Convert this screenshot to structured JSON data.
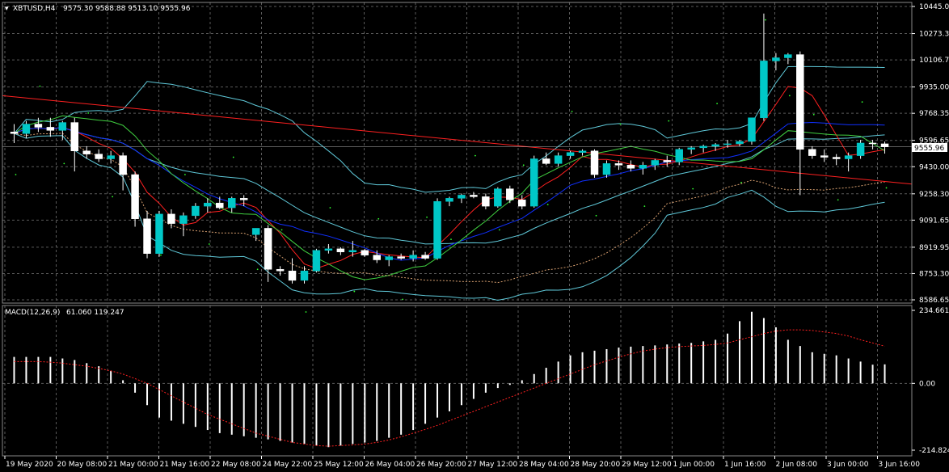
{
  "header": {
    "symbol_text": "XBTUSD,H4",
    "ohlc_text": "9575.30 9588.88 9513.10 9555.96"
  },
  "macd_header": {
    "label": "MACD(12,26,9)",
    "values_text": "61.060 119.247"
  },
  "current_price_label": "9555.96",
  "colors": {
    "background": "#000000",
    "grid": "#5a5a5a",
    "bull_body": "#00c8c8",
    "bear_body": "#ffffff",
    "bollinger": "#5fc8d8",
    "ma_fast": "#ff2020",
    "ma_slow": "#1030ff",
    "ma_long": "#ff2020",
    "rsi_like": "#40d040",
    "ichimoku_dots": "#30ff30",
    "envelope_dotted": "#d8a070",
    "macd_hist": "#ffffff",
    "macd_signal": "#ff2020"
  },
  "chart_data": [
    {
      "type": "candlestick",
      "title": "",
      "ylim": [
        8586.65,
        10445.05
      ],
      "y_ticks": [
        "10445.05",
        "10273.35",
        "10106.70",
        "9935.00",
        "9768.35",
        "9596.65",
        "9430.00",
        "9258.30",
        "9091.65",
        "8919.95",
        "8753.30",
        "8586.65"
      ],
      "x_ticks": [
        "19 May 2020",
        "20 May 08:00",
        "21 May 00:00",
        "21 May 16:00",
        "22 May 08:00",
        "24 May 22:00",
        "25 May 12:00",
        "26 May 04:00",
        "26 May 20:00",
        "27 May 12:00",
        "28 May 04:00",
        "28 May 20:00",
        "29 May 12:00",
        "1 Jun 00:00",
        "1 Jun 16:00",
        "2 Jun 08:00",
        "3 Jun 00:00",
        "3 Jun 16:00"
      ],
      "candles": [
        {
          "o": 9650,
          "h": 9700,
          "l": 9580,
          "c": 9640
        },
        {
          "o": 9640,
          "h": 9720,
          "l": 9610,
          "c": 9700
        },
        {
          "o": 9700,
          "h": 9740,
          "l": 9650,
          "c": 9680
        },
        {
          "o": 9680,
          "h": 9740,
          "l": 9620,
          "c": 9660
        },
        {
          "o": 9660,
          "h": 9720,
          "l": 9600,
          "c": 9710
        },
        {
          "o": 9710,
          "h": 9740,
          "l": 9400,
          "c": 9530
        },
        {
          "o": 9530,
          "h": 9560,
          "l": 9480,
          "c": 9510
        },
        {
          "o": 9510,
          "h": 9540,
          "l": 9460,
          "c": 9480
        },
        {
          "o": 9480,
          "h": 9530,
          "l": 9450,
          "c": 9500
        },
        {
          "o": 9500,
          "h": 9520,
          "l": 9280,
          "c": 9380
        },
        {
          "o": 9380,
          "h": 9400,
          "l": 9050,
          "c": 9100
        },
        {
          "o": 9100,
          "h": 9150,
          "l": 8850,
          "c": 8880
        },
        {
          "o": 8880,
          "h": 9150,
          "l": 8860,
          "c": 9130
        },
        {
          "o": 9130,
          "h": 9160,
          "l": 9040,
          "c": 9070
        },
        {
          "o": 9070,
          "h": 9140,
          "l": 8990,
          "c": 9120
        },
        {
          "o": 9120,
          "h": 9200,
          "l": 9100,
          "c": 9180
        },
        {
          "o": 9180,
          "h": 9230,
          "l": 9140,
          "c": 9200
        },
        {
          "o": 9200,
          "h": 9240,
          "l": 9160,
          "c": 9170
        },
        {
          "o": 9170,
          "h": 9240,
          "l": 9140,
          "c": 9230
        },
        {
          "o": 9230,
          "h": 9250,
          "l": 9180,
          "c": 9220
        },
        {
          "o": 9000,
          "h": 9040,
          "l": 8960,
          "c": 9040
        },
        {
          "o": 9040,
          "h": 9060,
          "l": 8700,
          "c": 8780
        },
        {
          "o": 8780,
          "h": 8800,
          "l": 8740,
          "c": 8770
        },
        {
          "o": 8770,
          "h": 8850,
          "l": 8690,
          "c": 8710
        },
        {
          "o": 8710,
          "h": 8800,
          "l": 8690,
          "c": 8770
        },
        {
          "o": 8770,
          "h": 8910,
          "l": 8760,
          "c": 8900
        },
        {
          "o": 8900,
          "h": 8940,
          "l": 8880,
          "c": 8910
        },
        {
          "o": 8910,
          "h": 8920,
          "l": 8870,
          "c": 8890
        },
        {
          "o": 8890,
          "h": 8960,
          "l": 8860,
          "c": 8900
        },
        {
          "o": 8900,
          "h": 8910,
          "l": 8860,
          "c": 8870
        },
        {
          "o": 8870,
          "h": 8900,
          "l": 8820,
          "c": 8840
        },
        {
          "o": 8840,
          "h": 8870,
          "l": 8800,
          "c": 8860
        },
        {
          "o": 8860,
          "h": 8880,
          "l": 8840,
          "c": 8850
        },
        {
          "o": 8850,
          "h": 8900,
          "l": 8830,
          "c": 8870
        },
        {
          "o": 8870,
          "h": 8890,
          "l": 8840,
          "c": 8850
        },
        {
          "o": 8850,
          "h": 9230,
          "l": 8840,
          "c": 9210
        },
        {
          "o": 9210,
          "h": 9240,
          "l": 9180,
          "c": 9230
        },
        {
          "o": 9230,
          "h": 9260,
          "l": 9200,
          "c": 9250
        },
        {
          "o": 9250,
          "h": 9270,
          "l": 9230,
          "c": 9240
        },
        {
          "o": 9240,
          "h": 9260,
          "l": 9160,
          "c": 9180
        },
        {
          "o": 9180,
          "h": 9300,
          "l": 9170,
          "c": 9290
        },
        {
          "o": 9290,
          "h": 9310,
          "l": 9200,
          "c": 9220
        },
        {
          "o": 9220,
          "h": 9250,
          "l": 9160,
          "c": 9180
        },
        {
          "o": 9180,
          "h": 9500,
          "l": 9170,
          "c": 9480
        },
        {
          "o": 9480,
          "h": 9520,
          "l": 9440,
          "c": 9450
        },
        {
          "o": 9450,
          "h": 9520,
          "l": 9430,
          "c": 9500
        },
        {
          "o": 9500,
          "h": 9530,
          "l": 9480,
          "c": 9520
        },
        {
          "o": 9520,
          "h": 9540,
          "l": 9500,
          "c": 9530
        },
        {
          "o": 9530,
          "h": 9540,
          "l": 9360,
          "c": 9380
        },
        {
          "o": 9380,
          "h": 9470,
          "l": 9360,
          "c": 9450
        },
        {
          "o": 9450,
          "h": 9470,
          "l": 9410,
          "c": 9440
        },
        {
          "o": 9440,
          "h": 9470,
          "l": 9400,
          "c": 9420
        },
        {
          "o": 9420,
          "h": 9460,
          "l": 9380,
          "c": 9440
        },
        {
          "o": 9440,
          "h": 9480,
          "l": 9410,
          "c": 9470
        },
        {
          "o": 9470,
          "h": 9500,
          "l": 9430,
          "c": 9460
        },
        {
          "o": 9460,
          "h": 9550,
          "l": 9440,
          "c": 9540
        },
        {
          "o": 9540,
          "h": 9560,
          "l": 9510,
          "c": 9550
        },
        {
          "o": 9550,
          "h": 9570,
          "l": 9520,
          "c": 9560
        },
        {
          "o": 9560,
          "h": 9580,
          "l": 9530,
          "c": 9570
        },
        {
          "o": 9570,
          "h": 9600,
          "l": 9550,
          "c": 9575
        },
        {
          "o": 9575,
          "h": 9600,
          "l": 9560,
          "c": 9590
        },
        {
          "o": 9590,
          "h": 9740,
          "l": 9570,
          "c": 9740
        },
        {
          "o": 9740,
          "h": 10400,
          "l": 9720,
          "c": 10100
        },
        {
          "o": 10100,
          "h": 10150,
          "l": 10040,
          "c": 10120
        },
        {
          "o": 10120,
          "h": 10150,
          "l": 10080,
          "c": 10140
        },
        {
          "o": 10140,
          "h": 10160,
          "l": 9250,
          "c": 9540
        },
        {
          "o": 9540,
          "h": 9560,
          "l": 9480,
          "c": 9500
        },
        {
          "o": 9500,
          "h": 9540,
          "l": 9460,
          "c": 9490
        },
        {
          "o": 9490,
          "h": 9510,
          "l": 9440,
          "c": 9480
        },
        {
          "o": 9480,
          "h": 9520,
          "l": 9400,
          "c": 9500
        },
        {
          "o": 9500,
          "h": 9600,
          "l": 9480,
          "c": 9580
        },
        {
          "o": 9580,
          "h": 9600,
          "l": 9540,
          "c": 9575
        },
        {
          "o": 9575,
          "h": 9588.88,
          "l": 9513.1,
          "c": 9555.96
        }
      ]
    },
    {
      "type": "bar",
      "title": "",
      "ylim": [
        -214.824,
        234.661
      ],
      "y_ticks": [
        "234.661",
        "0.00",
        "-214.824"
      ],
      "histogram": [
        85,
        85,
        85,
        85,
        80,
        75,
        65,
        55,
        40,
        10,
        -30,
        -70,
        -110,
        -120,
        -130,
        -140,
        -150,
        -160,
        -165,
        -170,
        -175,
        -180,
        -185,
        -190,
        -195,
        -200,
        -205,
        -200,
        -195,
        -190,
        -185,
        -175,
        -165,
        -150,
        -130,
        -110,
        -90,
        -70,
        -50,
        -30,
        -15,
        -5,
        10,
        30,
        50,
        70,
        90,
        100,
        105,
        110,
        115,
        118,
        120,
        122,
        125,
        128,
        130,
        135,
        140,
        160,
        200,
        230,
        210,
        180,
        140,
        120,
        100,
        95,
        90,
        80,
        70,
        60,
        61.06
      ],
      "signal": [
        70,
        70,
        70,
        68,
        65,
        60,
        55,
        48,
        40,
        30,
        15,
        0,
        -20,
        -40,
        -60,
        -80,
        -100,
        -115,
        -130,
        -145,
        -160,
        -170,
        -180,
        -190,
        -195,
        -200,
        -202,
        -200,
        -198,
        -195,
        -190,
        -182,
        -172,
        -160,
        -148,
        -135,
        -120,
        -105,
        -90,
        -75,
        -60,
        -45,
        -30,
        -15,
        0,
        15,
        30,
        45,
        60,
        72,
        84,
        95,
        104,
        110,
        115,
        118,
        120,
        122,
        125,
        130,
        140,
        150,
        160,
        168,
        172,
        172,
        170,
        165,
        160,
        152,
        140,
        130,
        119.247
      ]
    }
  ]
}
